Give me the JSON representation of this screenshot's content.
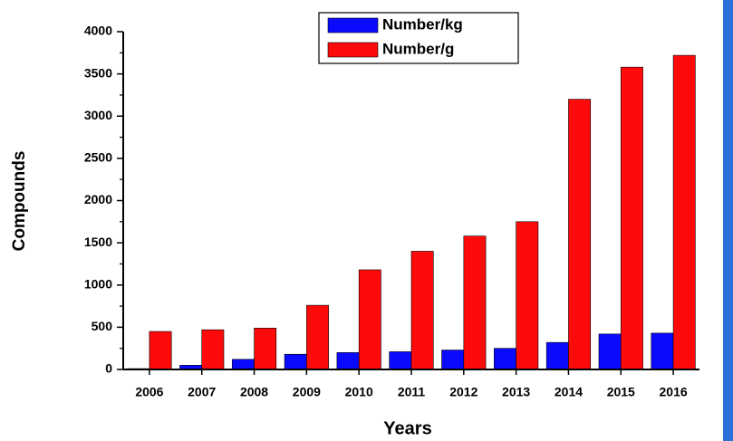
{
  "chart_data": {
    "type": "bar",
    "x_label": "Years",
    "y_label": "Compounds",
    "categories": [
      "2006",
      "2007",
      "2008",
      "2009",
      "2010",
      "2011",
      "2012",
      "2013",
      "2014",
      "2015",
      "2016"
    ],
    "series": [
      {
        "name": "Number/kg",
        "color": "#0a0aff",
        "values": [
          10,
          50,
          120,
          180,
          200,
          210,
          230,
          250,
          320,
          420,
          430
        ]
      },
      {
        "name": "Number/g",
        "color": "#ff0a0a",
        "values": [
          450,
          470,
          490,
          760,
          1180,
          1400,
          1580,
          1750,
          3200,
          3580,
          3720
        ]
      }
    ],
    "ylim": [
      0,
      4000
    ],
    "yticks": [
      0,
      500,
      1000,
      1500,
      2000,
      2500,
      3000,
      3500,
      4000
    ],
    "grid": false,
    "legend": "top"
  }
}
